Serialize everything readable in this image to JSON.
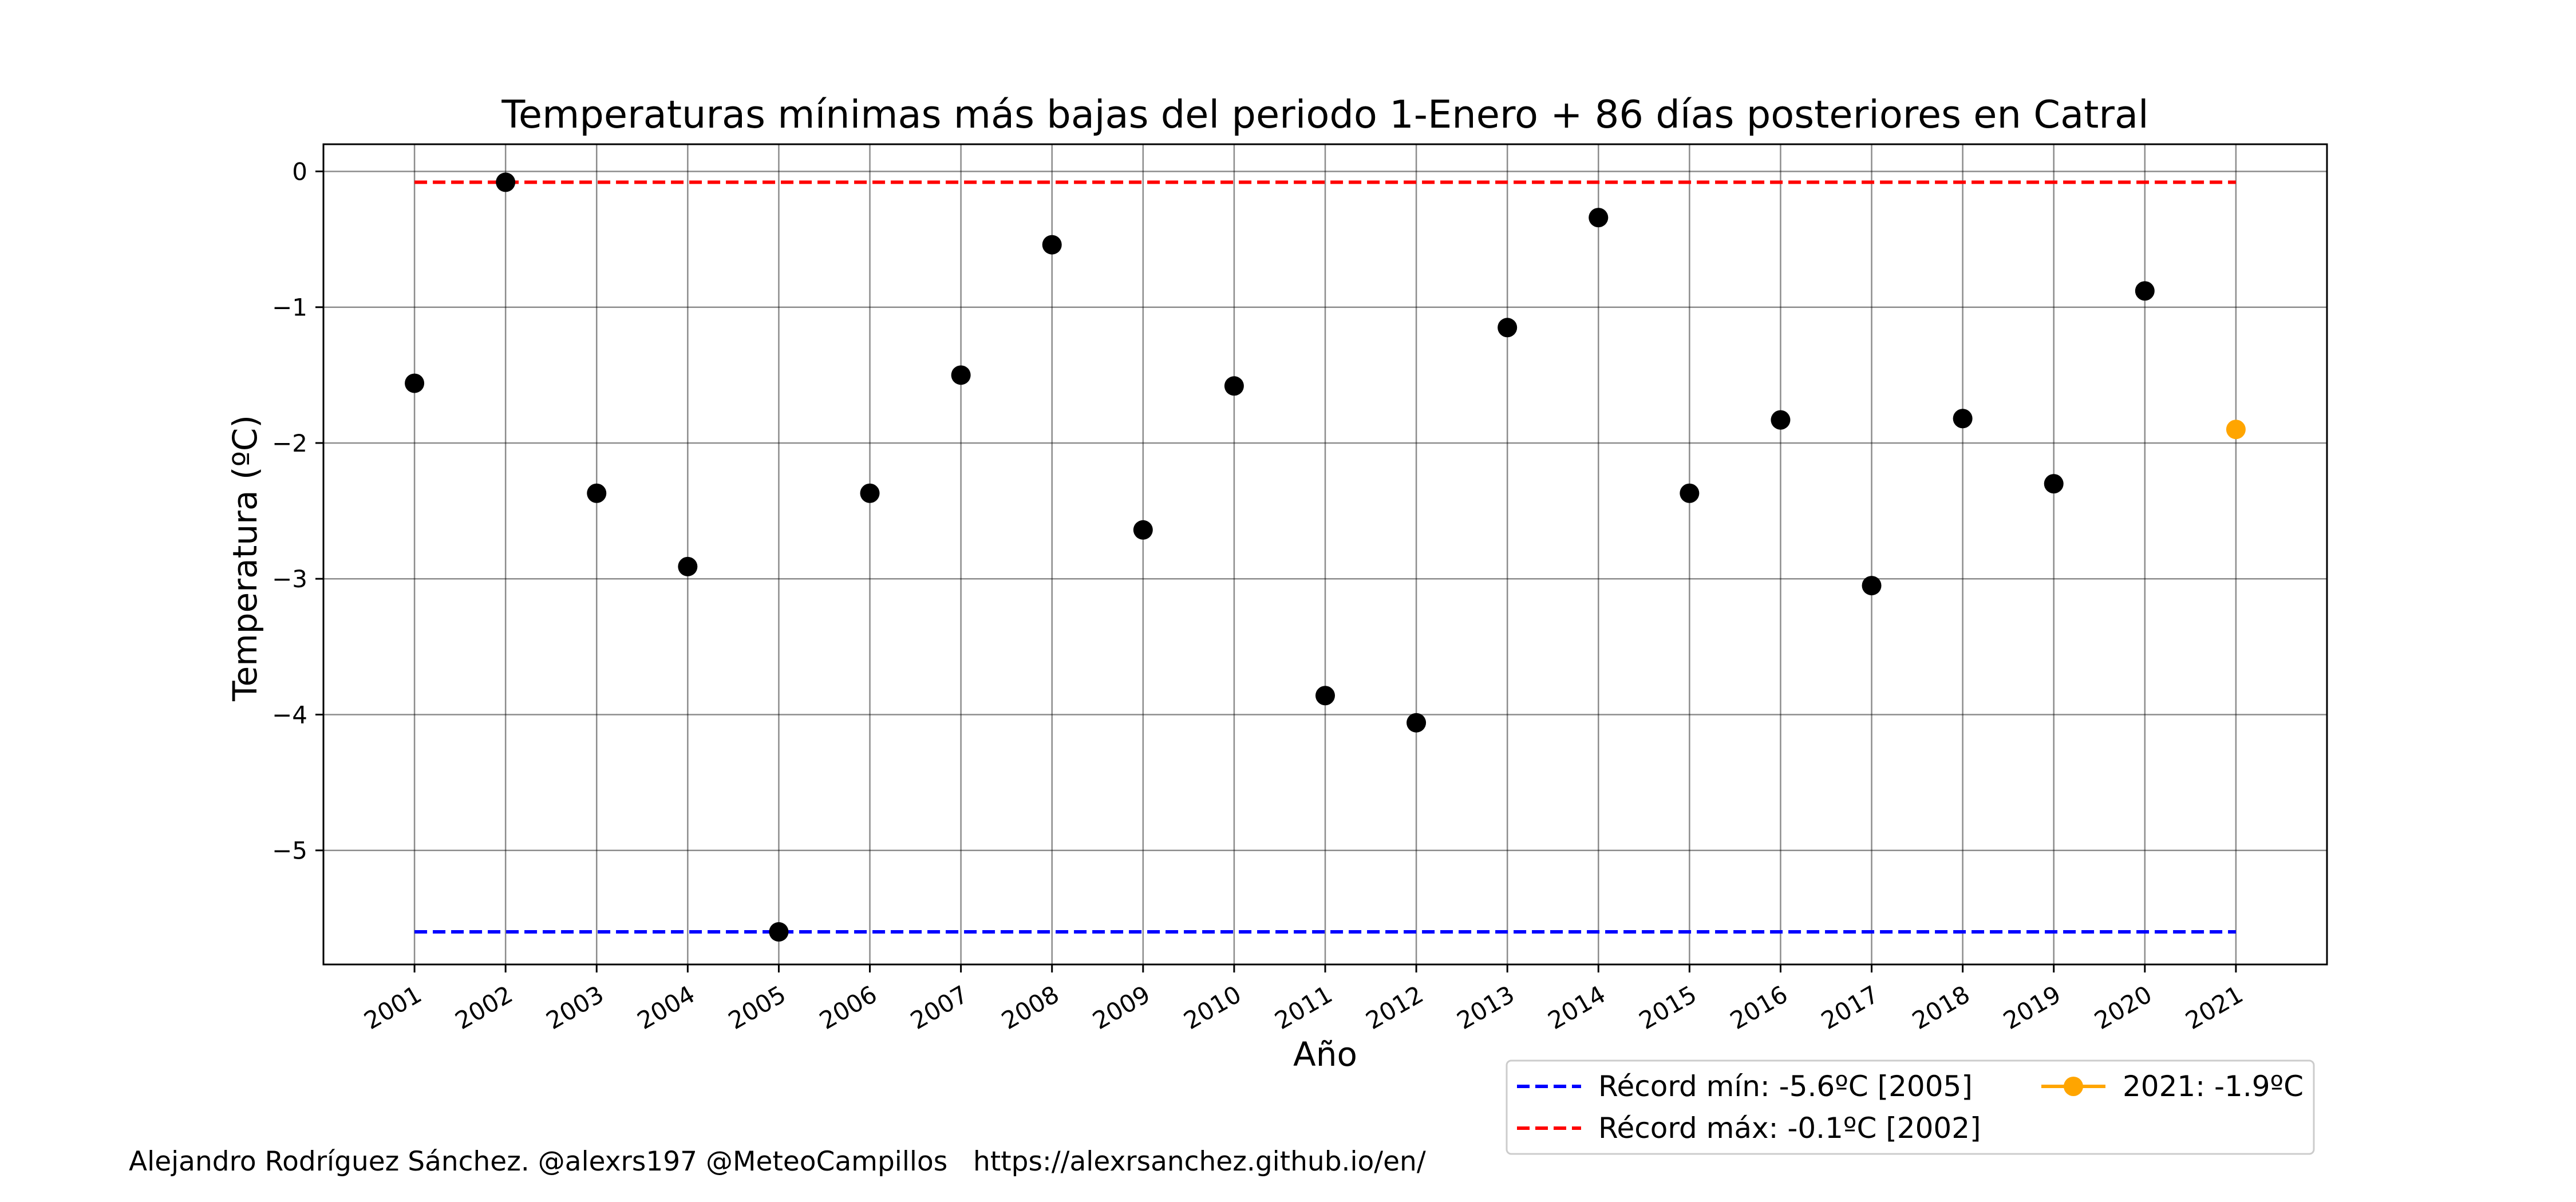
{
  "chart_data": {
    "type": "scatter",
    "title": "Temperaturas mínimas más bajas del periodo 1-Enero + 86 días posteriores en Catral",
    "xlabel": "Año",
    "ylabel": "Temperatura (ºC)",
    "x_ticks": [
      "2001",
      "2002",
      "2003",
      "2004",
      "2005",
      "2006",
      "2007",
      "2008",
      "2009",
      "2010",
      "2011",
      "2012",
      "2013",
      "2014",
      "2015",
      "2016",
      "2017",
      "2018",
      "2019",
      "2020",
      "2021"
    ],
    "y_ticks": [
      0,
      -1,
      -2,
      -3,
      -4,
      -5
    ],
    "y_tick_labels": [
      "0",
      "−1",
      "−2",
      "−3",
      "−4",
      "−5"
    ],
    "xlim": [
      2000,
      2022
    ],
    "ylim": [
      -5.84,
      0.2
    ],
    "grid": true,
    "series": [
      {
        "color": "#000000",
        "points": [
          {
            "x": 2001,
            "y": -1.56
          },
          {
            "x": 2002,
            "y": -0.08
          },
          {
            "x": 2003,
            "y": -2.37
          },
          {
            "x": 2004,
            "y": -2.91
          },
          {
            "x": 2005,
            "y": -5.6
          },
          {
            "x": 2006,
            "y": -2.37
          },
          {
            "x": 2007,
            "y": -1.5
          },
          {
            "x": 2008,
            "y": -0.54
          },
          {
            "x": 2009,
            "y": -2.64
          },
          {
            "x": 2010,
            "y": -1.58
          },
          {
            "x": 2011,
            "y": -3.86
          },
          {
            "x": 2012,
            "y": -4.06
          },
          {
            "x": 2013,
            "y": -1.15
          },
          {
            "x": 2014,
            "y": -0.34
          },
          {
            "x": 2015,
            "y": -2.37
          },
          {
            "x": 2016,
            "y": -1.83
          },
          {
            "x": 2017,
            "y": -3.05
          },
          {
            "x": 2018,
            "y": -1.82
          },
          {
            "x": 2019,
            "y": -2.3
          },
          {
            "x": 2020,
            "y": -0.88
          }
        ]
      },
      {
        "name": "2021: -1.9ºC",
        "color": "#FFA500",
        "points": [
          {
            "x": 2021,
            "y": -1.9
          }
        ]
      }
    ],
    "reference_lines": [
      {
        "name": "Récord mín: -5.6ºC [2005]",
        "y": -5.6,
        "x_range": [
          2001,
          2021
        ],
        "color": "#0000FF",
        "style": "dashed"
      },
      {
        "name": "Récord máx: -0.1ºC [2002]",
        "y": -0.08,
        "x_range": [
          2001,
          2021
        ],
        "color": "#FF0000",
        "style": "dashed"
      }
    ],
    "legend": {
      "placement": "bottom-right, below plot",
      "entries": [
        {
          "label": "Récord mín: -5.6ºC [2005]",
          "color": "#0000FF",
          "style": "dashed"
        },
        {
          "label": "Récord máx: -0.1ºC [2002]",
          "color": "#FF0000",
          "style": "dashed"
        },
        {
          "label": "2021: -1.9ºC",
          "color": "#FFA500",
          "style": "line-marker"
        }
      ]
    },
    "footer": "Alejandro Rodríguez Sánchez. @alexrs197 @MeteoCampillos   https://alexrsanchez.github.io/en/"
  }
}
